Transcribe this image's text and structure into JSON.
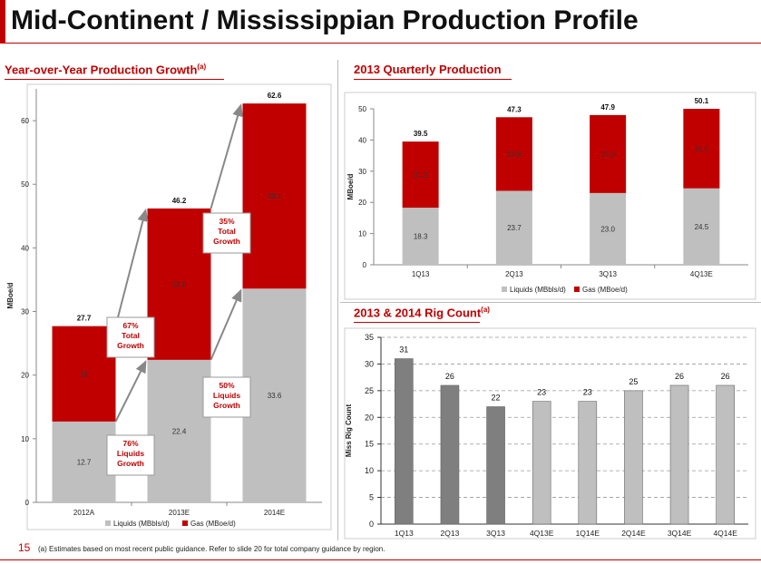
{
  "header": {
    "title": "Mid-Continent / Mississippian Production Profile"
  },
  "panels": {
    "yoy": {
      "title": "Year-over-Year Production Growth",
      "title_sup": "(a)"
    },
    "quarterly": {
      "title": "2013 Quarterly Production"
    },
    "rig": {
      "title": "2013 & 2014 Rig Count",
      "title_sup": "(a)"
    }
  },
  "footer": {
    "page_number": "15",
    "footnote": "(a)   Estimates based on most recent public guidance. Refer to slide 20 for total company guidance by region."
  },
  "colors": {
    "liquids": "#bfbfbf",
    "gas": "#c00000",
    "rig_dark": "#7f7f7f",
    "rig_light": "#bfbfbf",
    "accent": "#c00000"
  },
  "chart_data": [
    {
      "type": "bar",
      "stacked": true,
      "categories": [
        "2012A",
        "2013E",
        "2014E"
      ],
      "series": [
        {
          "name": "Liquids (MBbls/d)",
          "values": [
            12.7,
            22.4,
            33.6
          ]
        },
        {
          "name": "Gas (MBoe/d)",
          "values": [
            15,
            23.8,
            29.1
          ]
        }
      ],
      "totals": [
        "27.7",
        "46.2",
        "62.6"
      ],
      "segment_labels": [
        [
          "12.7",
          "15"
        ],
        [
          "22.4",
          "23.8"
        ],
        [
          "33.6",
          "29.1"
        ]
      ],
      "ylabel": "MBoe/d",
      "ylim": [
        0,
        65
      ],
      "yticks": [
        "0",
        "10",
        "20",
        "30",
        "40",
        "50",
        "60"
      ],
      "legend": "bottom",
      "annotations": [
        {
          "lines": [
            "67%",
            "Total",
            "Growth"
          ]
        },
        {
          "lines": [
            "76%",
            "Liquids",
            "Growth"
          ]
        },
        {
          "lines": [
            "35%",
            "Total",
            "Growth"
          ]
        },
        {
          "lines": [
            "50%",
            "Liquids",
            "Growth"
          ]
        }
      ]
    },
    {
      "type": "bar",
      "stacked": true,
      "categories": [
        "1Q13",
        "2Q13",
        "3Q13",
        "4Q13E"
      ],
      "series": [
        {
          "name": "Liquids (MBbls/d)",
          "values": [
            18.3,
            23.7,
            23.0,
            24.5
          ]
        },
        {
          "name": "Gas (MBoe/d)",
          "values": [
            21.2,
            23.6,
            25.0,
            25.5
          ]
        }
      ],
      "totals": [
        "39.5",
        "47.3",
        "47.9",
        "50.1"
      ],
      "segment_labels": [
        [
          "18.3",
          "21.2"
        ],
        [
          "23.7",
          "23.6"
        ],
        [
          "23.0",
          "25.0"
        ],
        [
          "24.5",
          "25.5"
        ]
      ],
      "ylabel": "MBoe/d",
      "ylim": [
        0,
        50
      ],
      "yticks": [
        "0",
        "10",
        "20",
        "30",
        "40",
        "50"
      ],
      "legend": "bottom"
    },
    {
      "type": "bar",
      "categories": [
        "1Q13",
        "2Q13",
        "3Q13",
        "4Q13E",
        "1Q14E",
        "2Q14E",
        "3Q14E",
        "4Q14E"
      ],
      "values": [
        31,
        26,
        22,
        23,
        23,
        25,
        26,
        26
      ],
      "value_labels": [
        "31",
        "26",
        "22",
        "23",
        "23",
        "25",
        "26",
        "26"
      ],
      "ylabel": "Miss Rig Count",
      "ylim": [
        0,
        35
      ],
      "yticks": [
        "0",
        "5",
        "10",
        "15",
        "20",
        "25",
        "30",
        "35"
      ],
      "grid": true
    }
  ]
}
